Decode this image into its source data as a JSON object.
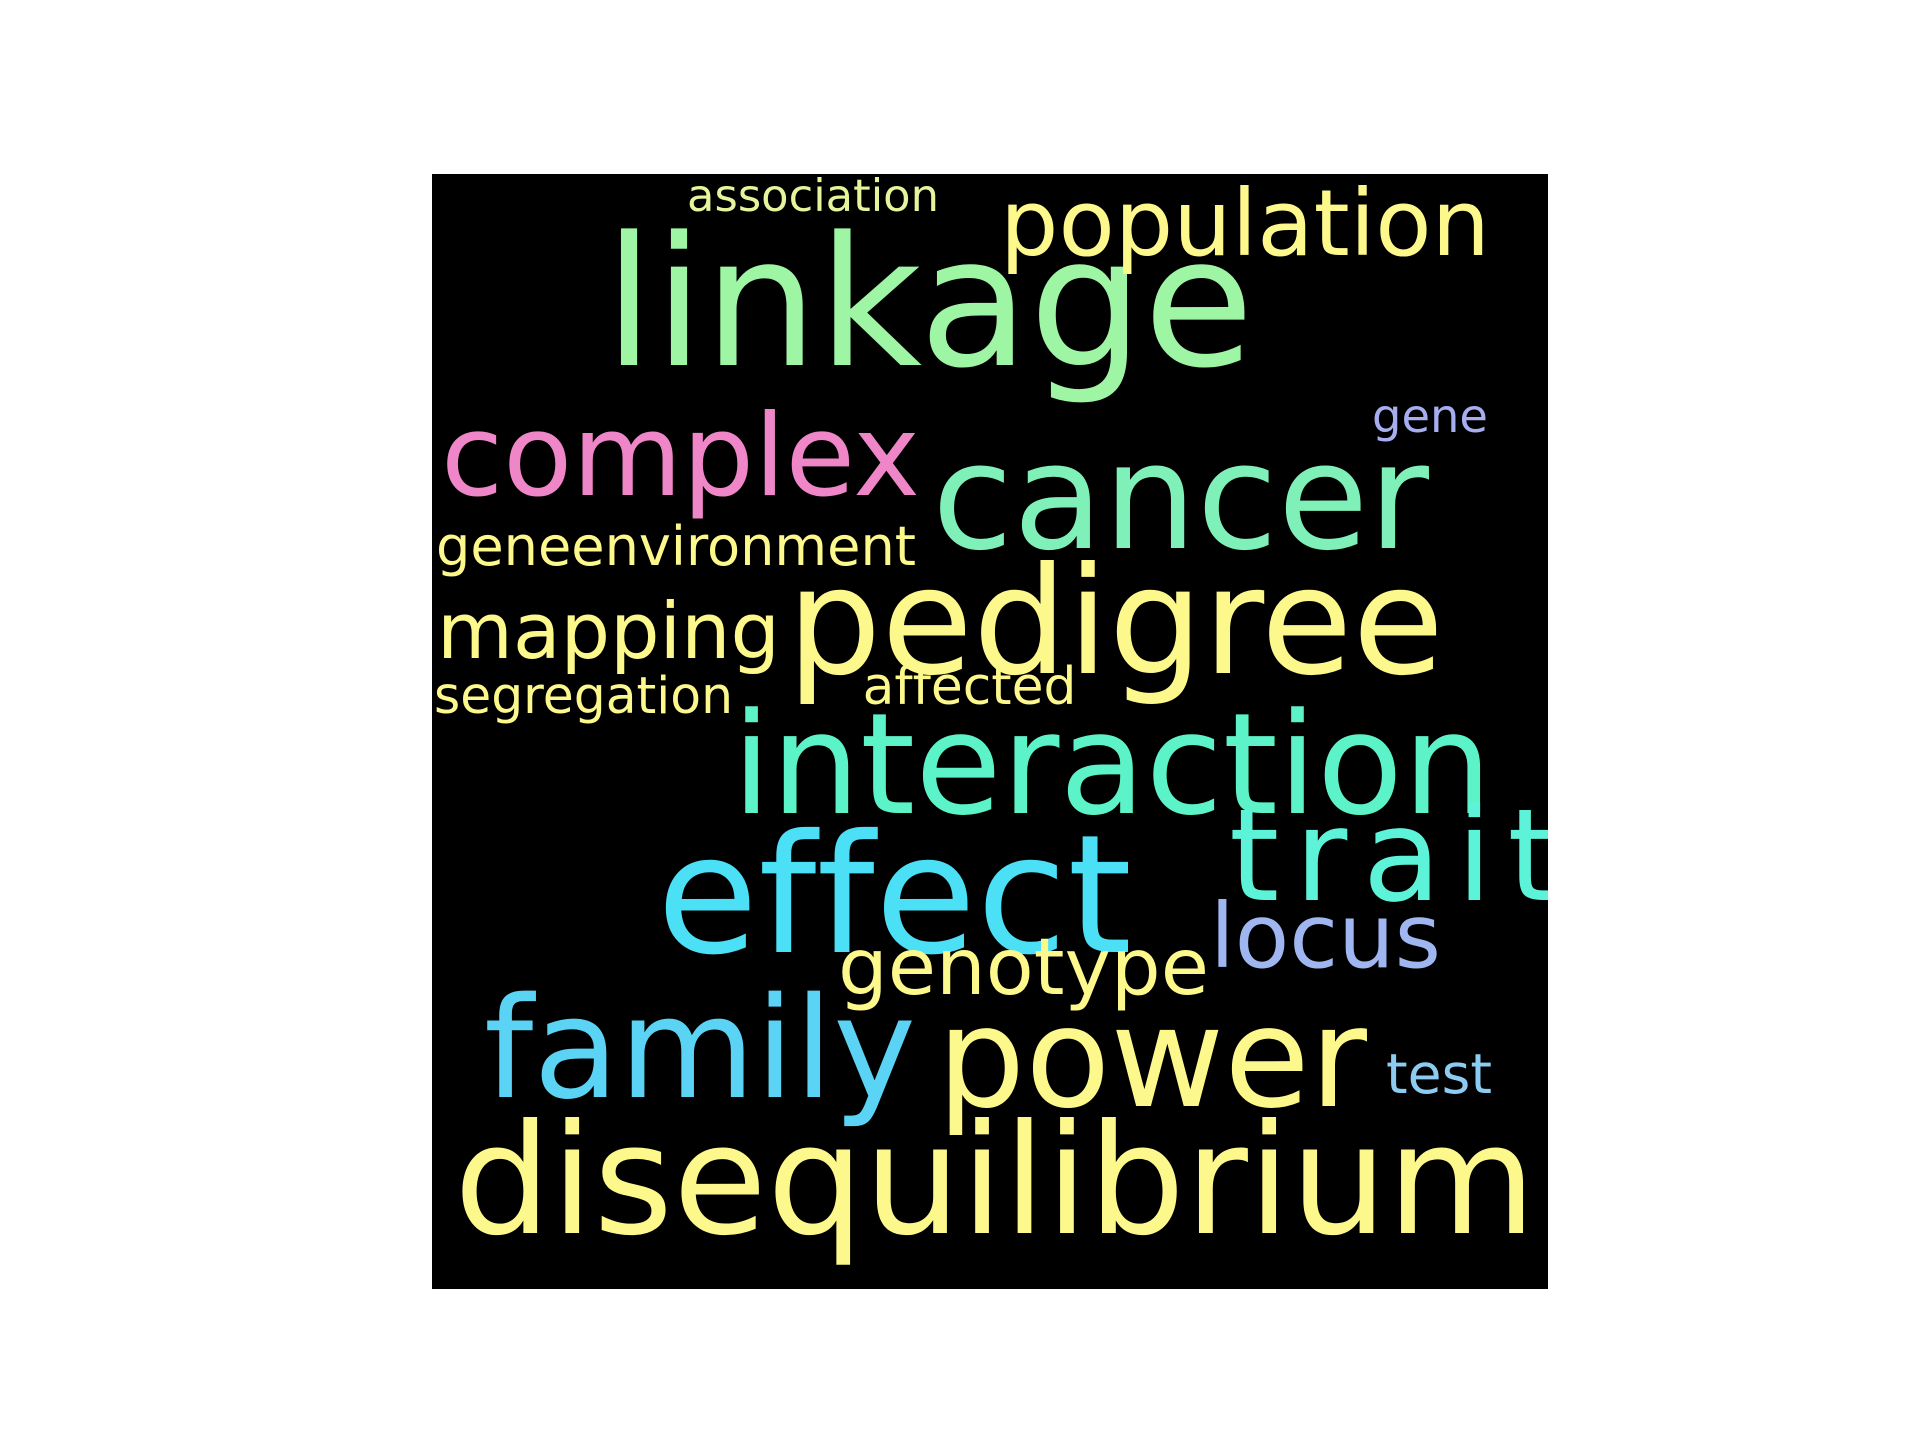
{
  "background": "#000000",
  "words": [
    {
      "id": "linkage",
      "text": "linkage",
      "color": "#9ef5a4"
    },
    {
      "id": "disequilibrium",
      "text": "disequilibrium",
      "color": "#fdf88c"
    },
    {
      "id": "pedigree",
      "text": "pedigree",
      "color": "#fdf88c"
    },
    {
      "id": "interaction",
      "text": "interaction",
      "color": "#5df3c8"
    },
    {
      "id": "effect",
      "text": "effect",
      "color": "#4be0f5"
    },
    {
      "id": "power",
      "text": "power",
      "color": "#fdf88c"
    },
    {
      "id": "family",
      "text": "family",
      "color": "#5bd3f5"
    },
    {
      "id": "cancer",
      "text": "cancer",
      "color": "#7ef0b8"
    },
    {
      "id": "trait",
      "text": "trait",
      "color": "#5df3d8"
    },
    {
      "id": "population",
      "text": "population",
      "color": "#fdf88c"
    },
    {
      "id": "complex",
      "text": "complex",
      "color": "#ee86c8"
    },
    {
      "id": "locus",
      "text": "locus",
      "color": "#9fb6f0"
    },
    {
      "id": "mapping",
      "text": "mapping",
      "color": "#fdf88c"
    },
    {
      "id": "genotype",
      "text": "genotype",
      "color": "#fdf88c"
    },
    {
      "id": "geneenvironment",
      "text": "geneenvironment",
      "color": "#fdf88c"
    },
    {
      "id": "segregation",
      "text": "segregation",
      "color": "#fdf88c"
    },
    {
      "id": "affected",
      "text": "affected",
      "color": "#fdf88c"
    },
    {
      "id": "association",
      "text": "association",
      "color": "#e6f59c"
    },
    {
      "id": "gene",
      "text": "gene",
      "color": "#a6aef0"
    },
    {
      "id": "test",
      "text": "test",
      "color": "#8ccbf2"
    }
  ]
}
